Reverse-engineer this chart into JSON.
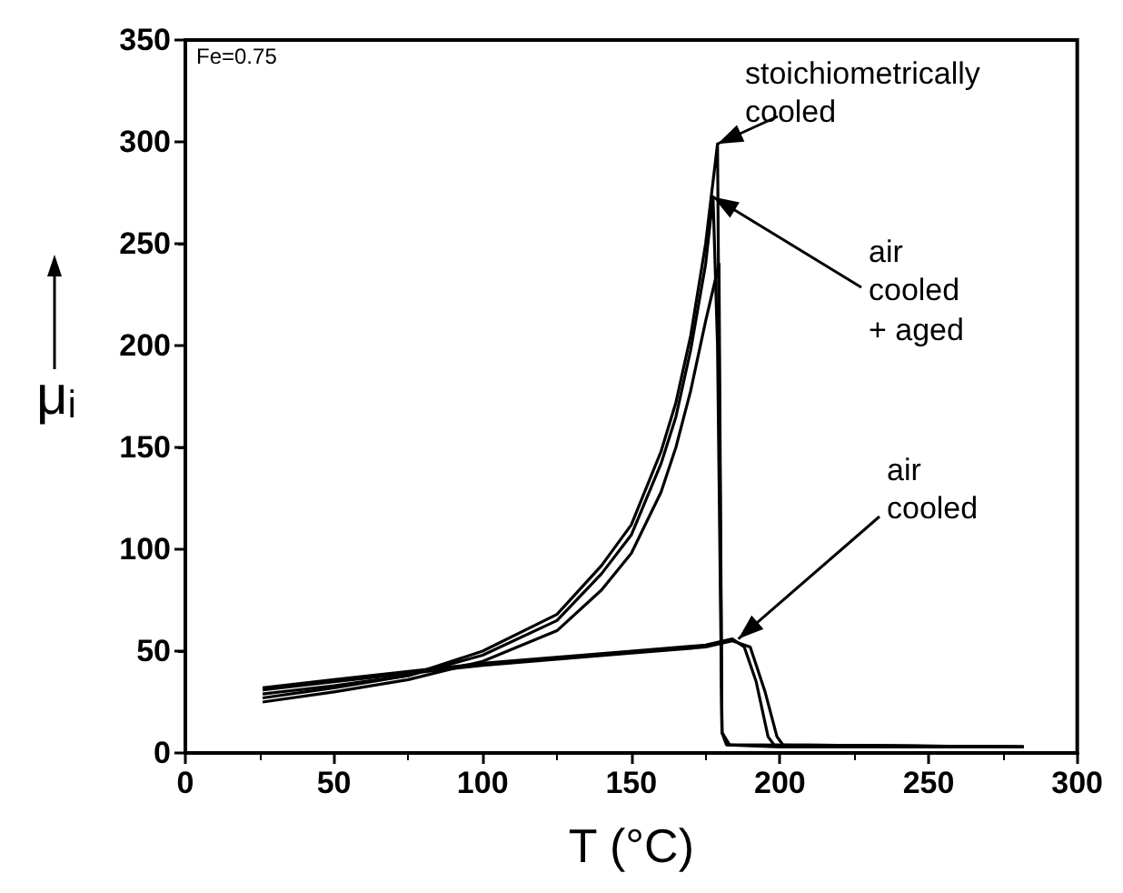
{
  "chart_data": {
    "type": "line",
    "xlabel": "T (°C)",
    "ylabel": "μᵢ",
    "xlim": [
      0,
      300
    ],
    "xticks": [
      0,
      50,
      100,
      150,
      200,
      250,
      300
    ],
    "ylim": [
      0,
      350
    ],
    "yticks": [
      0,
      50,
      100,
      150,
      200,
      250,
      300,
      350
    ],
    "grid": false,
    "marker": "none",
    "line_style": "solid",
    "annotations": [
      "Fe=0.75",
      {
        "text": "stoichiometrically cooled",
        "x": 179,
        "y": 299
      },
      {
        "text": "air cooled + aged",
        "x": 177.5,
        "y": 273
      },
      {
        "text": "air cooled",
        "x": 186,
        "y": 56
      }
    ],
    "series": [
      {
        "color": "#000000",
        "x": [
          26,
          50,
          75,
          100,
          125,
          140,
          150,
          160,
          165,
          170,
          175,
          179,
          180.5,
          182,
          200,
          282
        ],
        "values": [
          27,
          32,
          38,
          50,
          68,
          92,
          112,
          148,
          172,
          205,
          250,
          299,
          10,
          4,
          3,
          3
        ]
      },
      {
        "color": "#000000",
        "x": [
          26,
          50,
          75,
          100,
          125,
          140,
          150,
          160,
          165,
          170,
          175,
          177.5,
          179,
          180.5,
          183,
          282
        ],
        "values": [
          29,
          33,
          38,
          48,
          65,
          88,
          107,
          142,
          165,
          198,
          240,
          273,
          200,
          10,
          4,
          3
        ]
      },
      {
        "color": "#000000",
        "x": [
          26,
          50,
          75,
          100,
          125,
          140,
          150,
          160,
          165,
          170,
          175,
          179.5,
          180.5,
          183,
          282
        ],
        "values": [
          25,
          30,
          36,
          45,
          60,
          80,
          98,
          128,
          150,
          178,
          212,
          240,
          10,
          4,
          3
        ]
      },
      {
        "color": "#000000",
        "x": [
          26,
          50,
          75,
          100,
          150,
          175,
          184,
          188,
          192,
          196,
          198,
          282
        ],
        "values": [
          32,
          36,
          40,
          44,
          50,
          53,
          56,
          52,
          35,
          8,
          4,
          3
        ]
      },
      {
        "color": "#000000",
        "x": [
          26,
          50,
          75,
          100,
          150,
          175,
          184,
          190,
          195,
          199,
          201,
          282
        ],
        "values": [
          31,
          35,
          39,
          43,
          49,
          52,
          55,
          52,
          30,
          8,
          4,
          3
        ]
      }
    ]
  }
}
